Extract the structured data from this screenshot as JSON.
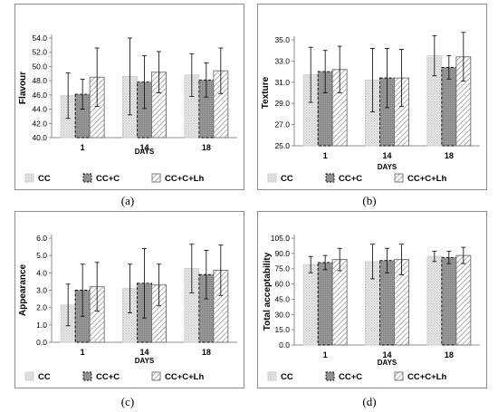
{
  "panels": [
    {
      "label": "(a)"
    },
    {
      "label": "(b)"
    },
    {
      "label": "(c)"
    },
    {
      "label": "(d)"
    }
  ],
  "chart_data": [
    {
      "type": "bar",
      "ylabel": "Flavour",
      "xlabel": "DAYS",
      "categories": [
        "1",
        "14",
        "18"
      ],
      "ylim": [
        40.0,
        54.0
      ],
      "yticks": [
        "40.0",
        "42.0",
        "44.0",
        "46.0",
        "48.0",
        "50.0",
        "52.0",
        "54.0"
      ],
      "series": [
        {
          "name": "CC",
          "values": [
            45.9,
            48.6,
            48.8
          ],
          "errors": [
            3.2,
            5.4,
            3.0
          ]
        },
        {
          "name": "CC+C",
          "values": [
            46.1,
            47.8,
            48.1
          ],
          "errors": [
            2.1,
            3.7,
            2.4
          ]
        },
        {
          "name": "CC+C+Lh",
          "values": [
            48.5,
            49.2,
            49.4
          ],
          "errors": [
            4.1,
            2.9,
            3.2
          ]
        }
      ]
    },
    {
      "type": "bar",
      "ylabel": "Texture",
      "xlabel": "DAYS",
      "categories": [
        "1",
        "14",
        "18"
      ],
      "ylim": [
        25.0,
        35.0
      ],
      "yticks": [
        "25.0",
        "27.0",
        "29.0",
        "31.0",
        "33.0",
        "35.0"
      ],
      "series": [
        {
          "name": "CC",
          "values": [
            31.7,
            31.2,
            33.5
          ],
          "errors": [
            2.6,
            3.0,
            1.9
          ]
        },
        {
          "name": "CC+C",
          "values": [
            32.0,
            31.4,
            32.4
          ],
          "errors": [
            2.0,
            2.8,
            1.1
          ]
        },
        {
          "name": "CC+C+Lh",
          "values": [
            32.2,
            31.4,
            33.4
          ],
          "errors": [
            2.2,
            2.7,
            2.3
          ]
        }
      ]
    },
    {
      "type": "bar",
      "ylabel": "Appearance",
      "xlabel": "DAYS",
      "categories": [
        "1",
        "14",
        "18"
      ],
      "ylim": [
        0.0,
        6.0
      ],
      "yticks": [
        "0.0",
        "1.0",
        "2.0",
        "3.0",
        "4.0",
        "5.0",
        "6.0"
      ],
      "series": [
        {
          "name": "CC",
          "values": [
            2.15,
            3.1,
            4.25
          ],
          "errors": [
            1.2,
            1.4,
            1.4
          ]
        },
        {
          "name": "CC+C",
          "values": [
            3.0,
            3.4,
            3.9
          ],
          "errors": [
            1.5,
            2.0,
            1.4
          ]
        },
        {
          "name": "CC+C+Lh",
          "values": [
            3.2,
            3.3,
            4.15
          ],
          "errors": [
            1.4,
            1.2,
            1.45
          ]
        }
      ]
    },
    {
      "type": "bar",
      "ylabel": "Total acceptability",
      "xlabel": "DAYS",
      "categories": [
        "1",
        "14",
        "18"
      ],
      "ylim": [
        0.0,
        105.0
      ],
      "yticks": [
        "0.0",
        "15.0",
        "30.0",
        "45.0",
        "60.0",
        "75.0",
        "90.0",
        "105.0"
      ],
      "series": [
        {
          "name": "CC",
          "values": [
            79,
            82,
            87
          ],
          "errors": [
            8,
            17,
            5
          ]
        },
        {
          "name": "CC+C",
          "values": [
            81,
            83,
            86
          ],
          "errors": [
            7,
            12,
            6
          ]
        },
        {
          "name": "CC+C+Lh",
          "values": [
            84,
            84,
            88
          ],
          "errors": [
            11,
            15,
            8
          ]
        }
      ]
    }
  ]
}
